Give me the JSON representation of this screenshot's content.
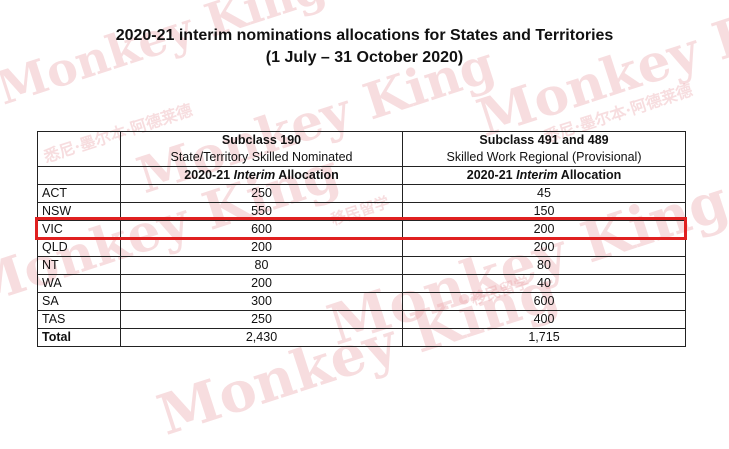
{
  "title": {
    "line1": "2020-21 interim nominations allocations for States and Territories",
    "line2": "(1 July – 31 October 2020)"
  },
  "columns": {
    "subclass190_title": "Subclass 190",
    "subclass190_desc": "State/Territory Skilled Nominated",
    "subclass491_title": "Subclass 491 and 489",
    "subclass491_desc": "Skilled Work Regional (Provisional)",
    "alloc_prefix": "2020-21 ",
    "alloc_italic": "Interim",
    "alloc_suffix": " Allocation"
  },
  "rows": [
    {
      "state": "ACT",
      "s190": "250",
      "s491": "45"
    },
    {
      "state": "NSW",
      "s190": "550",
      "s491": "150"
    },
    {
      "state": "VIC",
      "s190": "600",
      "s491": "200"
    },
    {
      "state": "QLD",
      "s190": "200",
      "s491": "200"
    },
    {
      "state": "NT",
      "s190": "80",
      "s491": "80"
    },
    {
      "state": "WA",
      "s190": "200",
      "s491": "40"
    },
    {
      "state": "SA",
      "s190": "300",
      "s491": "600"
    },
    {
      "state": "TAS",
      "s190": "250",
      "s491": "400"
    }
  ],
  "total": {
    "label": "Total",
    "s190": "2,430",
    "s491": "1,715"
  },
  "highlight_row": "NSW",
  "highlight_color": "#e02020",
  "watermark": {
    "brand": "Monkey King",
    "chinese": "移民留学",
    "chinese2": "悉尼·墨尔本·阿德莱德"
  }
}
